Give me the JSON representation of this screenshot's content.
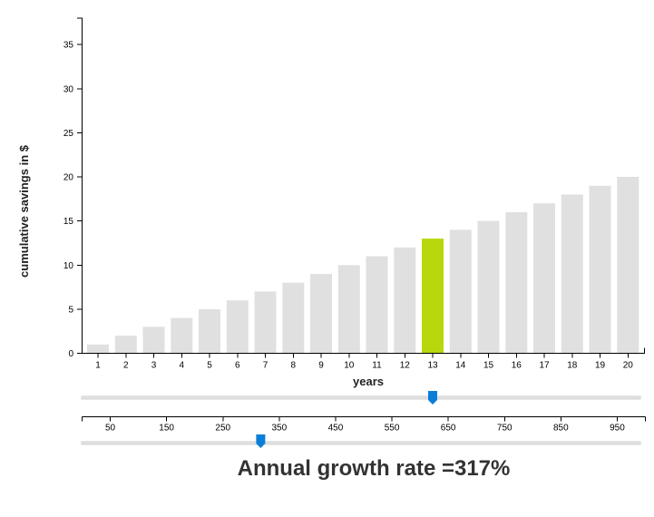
{
  "chart_data": {
    "type": "bar",
    "categories": [
      "1",
      "2",
      "3",
      "4",
      "5",
      "6",
      "7",
      "8",
      "9",
      "10",
      "11",
      "12",
      "13",
      "14",
      "15",
      "16",
      "17",
      "18",
      "19",
      "20"
    ],
    "values": [
      1,
      2,
      3,
      4,
      5,
      6,
      7,
      8,
      9,
      10,
      11,
      12,
      13,
      14,
      15,
      16,
      17,
      18,
      19,
      20
    ],
    "highlighted_category": "13",
    "xlabel": "years",
    "ylabel": "cumulative savings in $",
    "ylim": [
      0,
      38
    ],
    "yticks": [
      0,
      5,
      10,
      15,
      20,
      25,
      30,
      35
    ],
    "grid": false,
    "colors": {
      "bar": "#e0e0e0",
      "highlight": "#b8d70c"
    }
  },
  "sliders": {
    "year_slider": {
      "selected_year": 13
    },
    "rate_slider": {
      "ticks": [
        "50",
        "150",
        "250",
        "350",
        "450",
        "550",
        "650",
        "750",
        "850",
        "950"
      ],
      "value": 317
    },
    "handle_color": "#0a7fd8"
  },
  "growth_label": "Annual growth rate =317%"
}
